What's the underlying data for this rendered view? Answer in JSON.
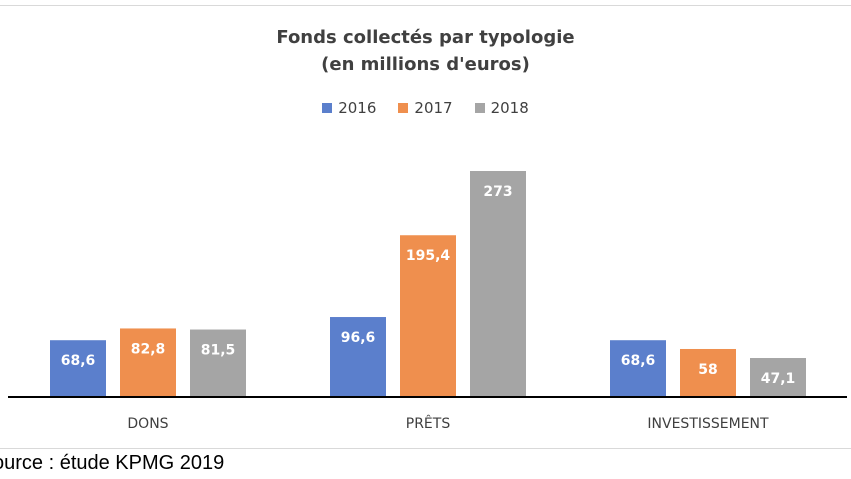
{
  "colors": {
    "2016": "#5b7fcc",
    "2017": "#ef8f4e",
    "2018": "#a5a5a5",
    "axis": "#000000"
  },
  "source_text": "ource : étude KPMG 2019",
  "chart_data": {
    "type": "bar",
    "title": "Fonds collectés par typologie",
    "subtitle": "(en millions d'euros)",
    "xlabel": "",
    "ylabel": "",
    "grid": false,
    "legend_position": "top-center",
    "categories": [
      "DONS",
      "PRÊTS",
      "INVESTISSEMENT"
    ],
    "series": [
      {
        "name": "2016",
        "values": [
          68.6,
          96.6,
          68.6
        ],
        "labels": [
          "68,6",
          "96,6",
          "68,6"
        ]
      },
      {
        "name": "2017",
        "values": [
          82.8,
          195.4,
          58
        ],
        "labels": [
          "82,8",
          "195,4",
          "58"
        ]
      },
      {
        "name": "2018",
        "values": [
          81.5,
          273,
          47.1
        ],
        "labels": [
          "81,5",
          "273",
          "47,1"
        ]
      }
    ],
    "ylim": [
      0,
      273
    ]
  }
}
